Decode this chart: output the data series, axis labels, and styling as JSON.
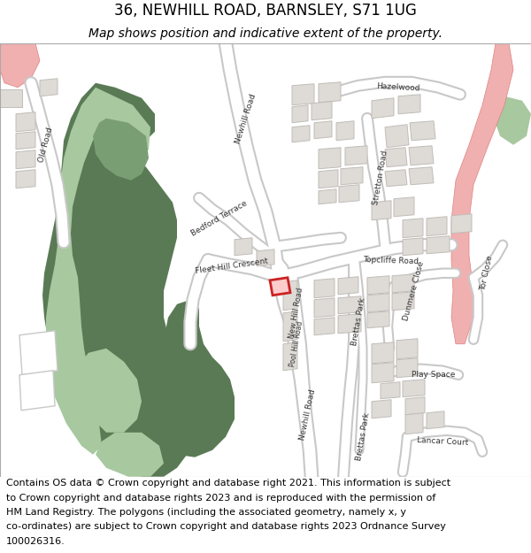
{
  "title_line1": "36, NEWHILL ROAD, BARNSLEY, S71 1UG",
  "title_line2": "Map shows position and indicative extent of the property.",
  "footer_lines": [
    "Contains OS data © Crown copyright and database right 2021. This information is subject",
    "to Crown copyright and database rights 2023 and is reproduced with the permission of",
    "HM Land Registry. The polygons (including the associated geometry, namely x, y",
    "co-ordinates) are subject to Crown copyright and database rights 2023 Ordnance Survey",
    "100026316."
  ],
  "title_fontsize": 12,
  "subtitle_fontsize": 10,
  "footer_fontsize": 8.0,
  "fig_width": 6.0,
  "fig_height": 6.25,
  "dpi": 100,
  "bg_white": "#ffffff",
  "map_bg": "#f5f3f0",
  "dark_green": "#5a7a55",
  "mid_green": "#7a9e74",
  "light_green": "#a8c8a0",
  "road_white": "#ffffff",
  "road_edge": "#c8c8c8",
  "building_fill": "#dedbd6",
  "building_edge": "#c0bdb8",
  "red_prop": "#cc2222",
  "pink_fill": "#f0b0b0",
  "pink_edge": "#e08080"
}
